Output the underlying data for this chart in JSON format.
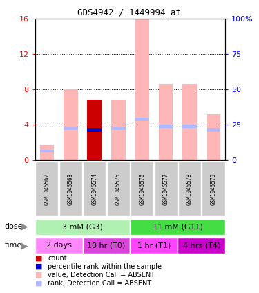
{
  "title": "GDS4942 / 1449994_at",
  "samples": [
    "GSM1045562",
    "GSM1045563",
    "GSM1045574",
    "GSM1045575",
    "GSM1045576",
    "GSM1045577",
    "GSM1045578",
    "GSM1045579"
  ],
  "value_absent": [
    1.6,
    8.0,
    0.0,
    6.8,
    16.0,
    8.6,
    8.6,
    5.2
  ],
  "rank_absent": [
    1.0,
    3.6,
    0.0,
    3.6,
    4.6,
    3.8,
    3.8,
    3.4
  ],
  "count": [
    0.0,
    0.0,
    6.8,
    0.0,
    0.0,
    0.0,
    0.0,
    0.0
  ],
  "percentile_rank": [
    0.0,
    0.0,
    3.4,
    0.0,
    0.0,
    0.0,
    0.0,
    0.0
  ],
  "ylim_left": [
    0,
    16
  ],
  "ylim_right": [
    0,
    100
  ],
  "yticks_left": [
    0,
    4,
    8,
    12,
    16
  ],
  "yticks_right": [
    0,
    25,
    50,
    75,
    100
  ],
  "ytick_labels_right": [
    "0",
    "25",
    "50",
    "75",
    "100%"
  ],
  "dose_groups": [
    {
      "label": "3 mM (G3)",
      "start": 0,
      "end": 4,
      "color": "#b0f0b0"
    },
    {
      "label": "11 mM (G11)",
      "start": 4,
      "end": 8,
      "color": "#44dd44"
    }
  ],
  "time_groups": [
    {
      "label": "2 days",
      "start": 0,
      "end": 2,
      "color": "#ff88ff"
    },
    {
      "label": "10 hr (T0)",
      "start": 2,
      "end": 4,
      "color": "#dd44dd"
    },
    {
      "label": "1 hr (T1)",
      "start": 4,
      "end": 6,
      "color": "#ff44ff"
    },
    {
      "label": "4 hrs (T4)",
      "start": 6,
      "end": 8,
      "color": "#cc00cc"
    }
  ],
  "color_value_absent": "#ffb6b6",
  "color_rank_absent": "#b0b8ff",
  "color_count": "#cc0000",
  "color_percentile": "#0000cc",
  "bar_width": 0.6,
  "rank_bar_height": 0.35,
  "legend_items": [
    {
      "color": "#cc0000",
      "label": "count"
    },
    {
      "color": "#0000cc",
      "label": "percentile rank within the sample"
    },
    {
      "color": "#ffb6b6",
      "label": "value, Detection Call = ABSENT"
    },
    {
      "color": "#b0b8ff",
      "label": "rank, Detection Call = ABSENT"
    }
  ]
}
